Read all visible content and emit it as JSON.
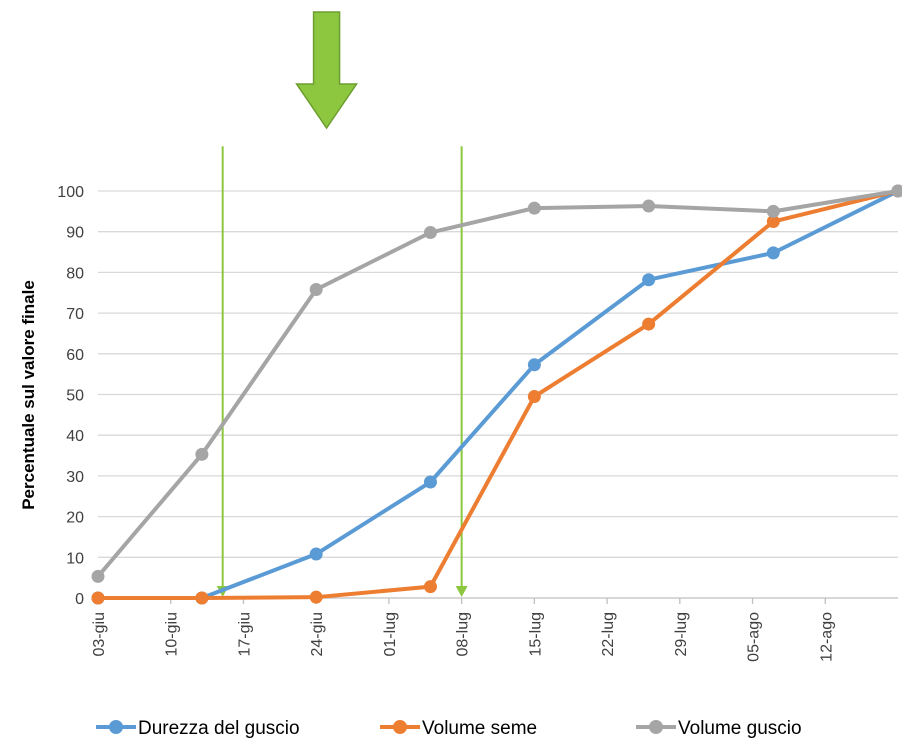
{
  "chart_data": {
    "type": "line",
    "title": "",
    "xlabel": "",
    "ylabel": "Percentuale sul valore finale",
    "x_ticks": [
      "03-giu",
      "10-giu",
      "17-giu",
      "24-giu",
      "01-lug",
      "08-lug",
      "15-lug",
      "22-lug",
      "29-lug",
      "05-ago",
      "12-ago"
    ],
    "x_range": [
      "2013-06-03",
      "2013-08-19"
    ],
    "y_ticks": [
      0,
      10,
      20,
      30,
      40,
      50,
      60,
      70,
      80,
      90,
      100
    ],
    "ylim": [
      0,
      100
    ],
    "grid": "horizontal",
    "legend_position": "bottom",
    "series": [
      {
        "name": "Durezza del guscio",
        "color": "#5B9BD5",
        "points": [
          {
            "x": "2013-06-03",
            "y": 0
          },
          {
            "x": "2013-06-13",
            "y": 0
          },
          {
            "x": "2013-06-24",
            "y": 10.8
          },
          {
            "x": "2013-07-05",
            "y": 28.5
          },
          {
            "x": "2013-07-15",
            "y": 57.3
          },
          {
            "x": "2013-07-26",
            "y": 78.2
          },
          {
            "x": "2013-08-07",
            "y": 84.8
          },
          {
            "x": "2013-08-19",
            "y": 100
          }
        ]
      },
      {
        "name": "Volume seme",
        "color": "#ED7D31",
        "points": [
          {
            "x": "2013-06-03",
            "y": 0
          },
          {
            "x": "2013-06-13",
            "y": 0
          },
          {
            "x": "2013-06-24",
            "y": 0.2
          },
          {
            "x": "2013-07-05",
            "y": 2.8
          },
          {
            "x": "2013-07-15",
            "y": 49.5
          },
          {
            "x": "2013-07-26",
            "y": 67.3
          },
          {
            "x": "2013-08-07",
            "y": 92.5
          },
          {
            "x": "2013-08-19",
            "y": 100
          }
        ]
      },
      {
        "name": "Volume guscio",
        "color": "#A5A5A5",
        "points": [
          {
            "x": "2013-06-03",
            "y": 5.3
          },
          {
            "x": "2013-06-13",
            "y": 35.3
          },
          {
            "x": "2013-06-24",
            "y": 75.8
          },
          {
            "x": "2013-07-05",
            "y": 89.8
          },
          {
            "x": "2013-07-15",
            "y": 95.8
          },
          {
            "x": "2013-07-26",
            "y": 96.3
          },
          {
            "x": "2013-08-07",
            "y": 95.0
          },
          {
            "x": "2013-08-19",
            "y": 100
          }
        ]
      }
    ],
    "annotations": [
      {
        "type": "big-down-arrow",
        "color": "#8DC63F",
        "x": "2013-06-25"
      },
      {
        "type": "vertical-arrow",
        "color": "#8DC63F",
        "x": "2013-06-15",
        "from_y": 111,
        "to_y": 0
      },
      {
        "type": "vertical-arrow",
        "color": "#8DC63F",
        "x": "2013-07-08",
        "from_y": 111,
        "to_y": 0
      }
    ]
  }
}
